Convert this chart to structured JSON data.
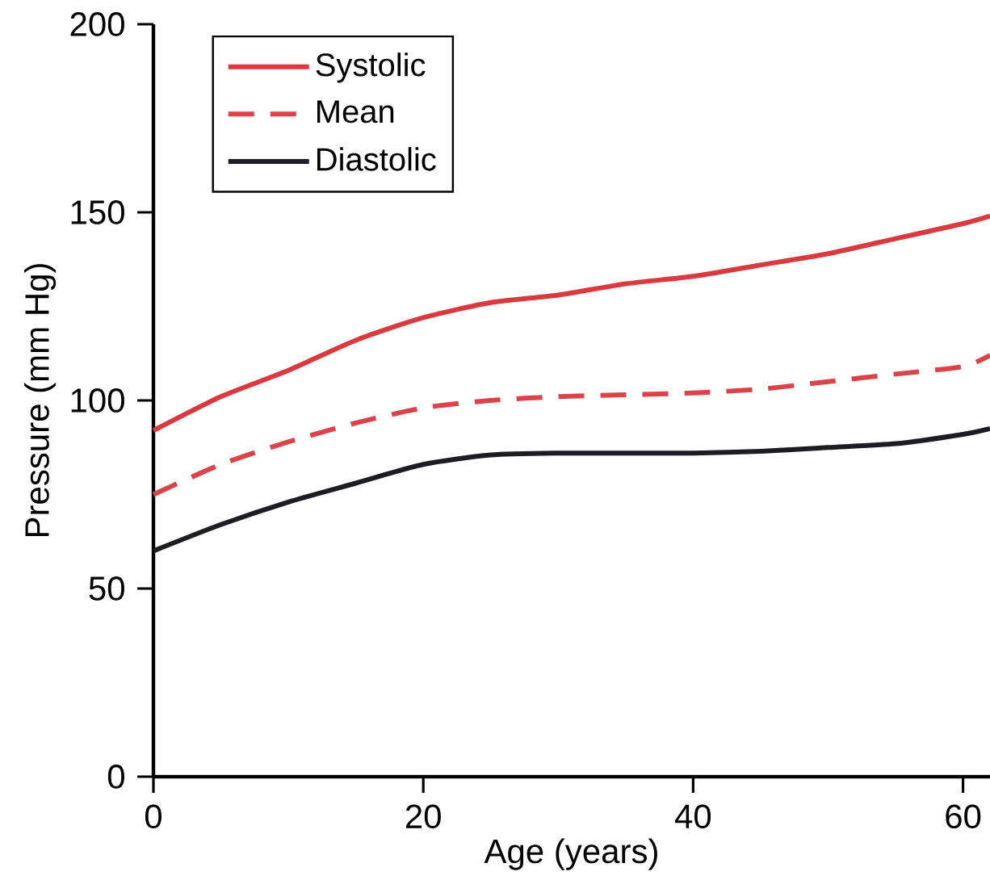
{
  "chart_data": {
    "type": "line",
    "xlabel": "Age (years)",
    "ylabel": "Pressure (mm Hg)",
    "xlim": [
      0,
      62
    ],
    "ylim": [
      0,
      200
    ],
    "xticks": [
      0,
      20,
      40,
      60
    ],
    "yticks": [
      0,
      50,
      100,
      150,
      200
    ],
    "legend": "top left",
    "series": [
      {
        "name": "Systolic",
        "color": "#d93a3f",
        "line_style": "solid",
        "x": [
          0,
          5,
          10,
          15,
          20,
          25,
          30,
          35,
          40,
          45,
          50,
          55,
          60,
          62
        ],
        "values": [
          92,
          101,
          108,
          116,
          122,
          126,
          128,
          131,
          133,
          136,
          139,
          143,
          147,
          149
        ]
      },
      {
        "name": "Mean",
        "color": "#d9444a",
        "line_style": "dashed",
        "x": [
          0,
          5,
          10,
          15,
          20,
          25,
          30,
          35,
          40,
          45,
          50,
          55,
          60,
          62
        ],
        "values": [
          75,
          83,
          89,
          94,
          98,
          100,
          101,
          101.5,
          102,
          103,
          105,
          107,
          109,
          112
        ]
      },
      {
        "name": "Diastolic",
        "color": "#1c1c22",
        "line_style": "solid",
        "x": [
          0,
          5,
          10,
          15,
          20,
          25,
          30,
          35,
          40,
          45,
          50,
          55,
          60,
          62
        ],
        "values": [
          60,
          67,
          73,
          78,
          83,
          85.5,
          86,
          86,
          86,
          86.5,
          87.5,
          88.5,
          91,
          92.5
        ]
      }
    ]
  }
}
